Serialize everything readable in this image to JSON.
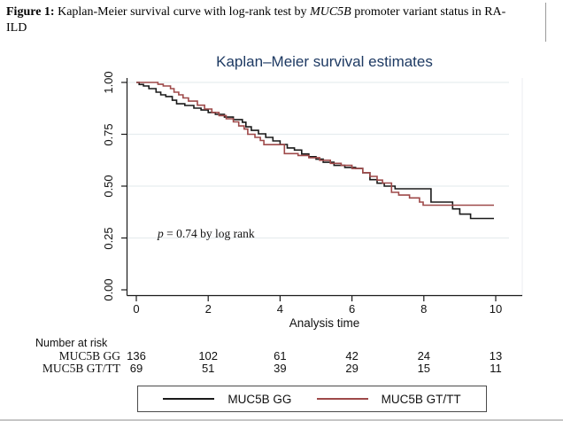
{
  "caption": {
    "label": "Figure 1:",
    "text_before_gene": " Kaplan-Meier survival curve with log-rank test by ",
    "gene": "MUC5B",
    "text_after_gene": " promoter variant status in RA-",
    "line2": "ILD"
  },
  "chart_data": {
    "type": "line",
    "subtype": "kaplan-meier-step",
    "title": "Kaplan–Meier survival estimates",
    "xlabel": "Analysis time",
    "ylabel": "",
    "xlim": [
      0,
      10.5
    ],
    "ylim": [
      0,
      1
    ],
    "x_ticks": [
      0,
      2,
      4,
      6,
      8,
      10
    ],
    "y_tick_labels": [
      "0.00",
      "0.25",
      "0.50",
      "0.75",
      "1.00"
    ],
    "y_tick_values": [
      0,
      0.25,
      0.5,
      0.75,
      1.0
    ],
    "grid": "horizontal-light",
    "annotation": {
      "prefix_italic": "p",
      "rest": " = 0.74 by log rank"
    },
    "legend_position": "bottom-box",
    "series": [
      {
        "name": "MUC5B GG",
        "color": "#1a1a1a",
        "steps": [
          [
            0,
            1.0
          ],
          [
            0.08,
            0.99
          ],
          [
            0.2,
            0.983
          ],
          [
            0.35,
            0.97
          ],
          [
            0.55,
            0.953
          ],
          [
            0.68,
            0.94
          ],
          [
            0.82,
            0.932
          ],
          [
            1.0,
            0.914
          ],
          [
            1.12,
            0.897
          ],
          [
            1.35,
            0.889
          ],
          [
            1.6,
            0.876
          ],
          [
            1.8,
            0.867
          ],
          [
            2.0,
            0.855
          ],
          [
            2.2,
            0.846
          ],
          [
            2.45,
            0.833
          ],
          [
            2.7,
            0.821
          ],
          [
            2.95,
            0.808
          ],
          [
            3.05,
            0.786
          ],
          [
            3.2,
            0.769
          ],
          [
            3.4,
            0.752
          ],
          [
            3.6,
            0.735
          ],
          [
            3.8,
            0.718
          ],
          [
            4.0,
            0.701
          ],
          [
            4.2,
            0.684
          ],
          [
            4.4,
            0.674
          ],
          [
            4.6,
            0.655
          ],
          [
            4.8,
            0.642
          ],
          [
            5.0,
            0.63
          ],
          [
            5.2,
            0.615
          ],
          [
            5.5,
            0.6
          ],
          [
            5.8,
            0.59
          ],
          [
            6.1,
            0.585
          ],
          [
            6.3,
            0.564
          ],
          [
            6.5,
            0.531
          ],
          [
            6.7,
            0.514
          ],
          [
            6.9,
            0.5
          ],
          [
            7.2,
            0.487
          ],
          [
            8.2,
            0.423
          ],
          [
            8.8,
            0.39
          ],
          [
            9.0,
            0.365
          ],
          [
            9.3,
            0.344
          ],
          [
            9.95,
            0.344
          ]
        ]
      },
      {
        "name": "MUC5B GT/TT",
        "color": "#9e4949",
        "steps": [
          [
            0,
            1.0
          ],
          [
            0.6,
            0.991
          ],
          [
            0.75,
            0.983
          ],
          [
            0.95,
            0.97
          ],
          [
            1.05,
            0.953
          ],
          [
            1.18,
            0.94
          ],
          [
            1.3,
            0.925
          ],
          [
            1.45,
            0.91
          ],
          [
            1.7,
            0.89
          ],
          [
            1.9,
            0.872
          ],
          [
            2.1,
            0.855
          ],
          [
            2.3,
            0.84
          ],
          [
            2.5,
            0.825
          ],
          [
            2.7,
            0.81
          ],
          [
            2.85,
            0.79
          ],
          [
            3.0,
            0.775
          ],
          [
            3.1,
            0.75
          ],
          [
            3.3,
            0.735
          ],
          [
            3.45,
            0.72
          ],
          [
            3.55,
            0.7
          ],
          [
            4.12,
            0.657
          ],
          [
            4.5,
            0.648
          ],
          [
            4.8,
            0.637
          ],
          [
            5.1,
            0.625
          ],
          [
            5.4,
            0.61
          ],
          [
            5.7,
            0.6
          ],
          [
            6.0,
            0.585
          ],
          [
            6.3,
            0.565
          ],
          [
            6.5,
            0.547
          ],
          [
            6.7,
            0.529
          ],
          [
            6.85,
            0.515
          ],
          [
            7.1,
            0.47
          ],
          [
            7.3,
            0.457
          ],
          [
            7.6,
            0.443
          ],
          [
            7.88,
            0.423
          ],
          [
            7.98,
            0.408
          ],
          [
            9.95,
            0.408
          ]
        ]
      }
    ]
  },
  "risk_table": {
    "header": "Number at risk",
    "times": [
      0,
      2,
      4,
      6,
      8,
      10
    ],
    "rows": [
      {
        "label": "MUC5B GG",
        "values": [
          "136",
          "102",
          "61",
          "42",
          "24",
          "13"
        ]
      },
      {
        "label": "MUC5B GT/TT",
        "values": [
          "69",
          "51",
          "39",
          "29",
          "15",
          "11"
        ]
      }
    ]
  },
  "colors": {
    "title": "#1e3a63",
    "axis": "#1a1a1a",
    "gridline": "#e7edef",
    "plot_right_border": "#eef1f2",
    "series_gg": "#1a1a1a",
    "series_gttt": "#9e4949"
  }
}
